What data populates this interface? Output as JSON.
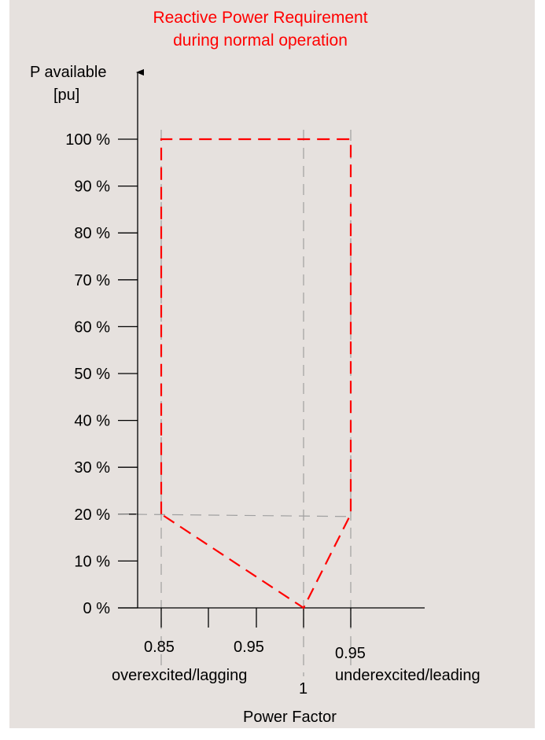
{
  "colors": {
    "background": "#e6e1de",
    "envelope": "#ff0000",
    "guide": "#a0a0a0",
    "axis": "#000000",
    "title": "#ff0000"
  },
  "chart_data": {
    "type": "line",
    "title_lines": [
      "Reactive Power Requirement",
      "during normal operation"
    ],
    "ylabel_lines": [
      "P available",
      "[pu]"
    ],
    "xlabel": "Power Factor",
    "y_ticks": [
      "0 %",
      "10 %",
      "20 %",
      "30 %",
      "40 %",
      "50 %",
      "60 %",
      "70 %",
      "80 %",
      "90 %",
      "100 %"
    ],
    "ylim": [
      0,
      100
    ],
    "x_tick_labels": [
      {
        "key": "pf-085-lag",
        "text": "0.85"
      },
      {
        "key": "pf-095-lag",
        "text": "0.95"
      },
      {
        "key": "pf-1",
        "text": "1"
      },
      {
        "key": "pf-095-lead",
        "text": "0.95"
      }
    ],
    "x_region_labels": {
      "lagging": "overexcited/lagging",
      "leading": "underexcited/leading"
    },
    "series": [
      {
        "style": "dashed",
        "color": "#ff0000",
        "points": [
          {
            "pf": "0.85 lagging",
            "p": 20
          },
          {
            "pf": "0.85 lagging",
            "p": 100
          },
          {
            "pf": "0.95 leading",
            "p": 100
          },
          {
            "pf": "0.95 leading",
            "p": 20
          },
          {
            "pf": "1",
            "p": 0
          },
          {
            "pf": "0.85 lagging",
            "p": 20
          }
        ]
      }
    ],
    "guides": [
      {
        "type": "vertical",
        "at": "0.85 lagging"
      },
      {
        "type": "vertical",
        "at": "1"
      },
      {
        "type": "vertical",
        "at": "0.95 leading"
      },
      {
        "type": "horizontal",
        "at_p": 20
      }
    ],
    "grid": false
  }
}
